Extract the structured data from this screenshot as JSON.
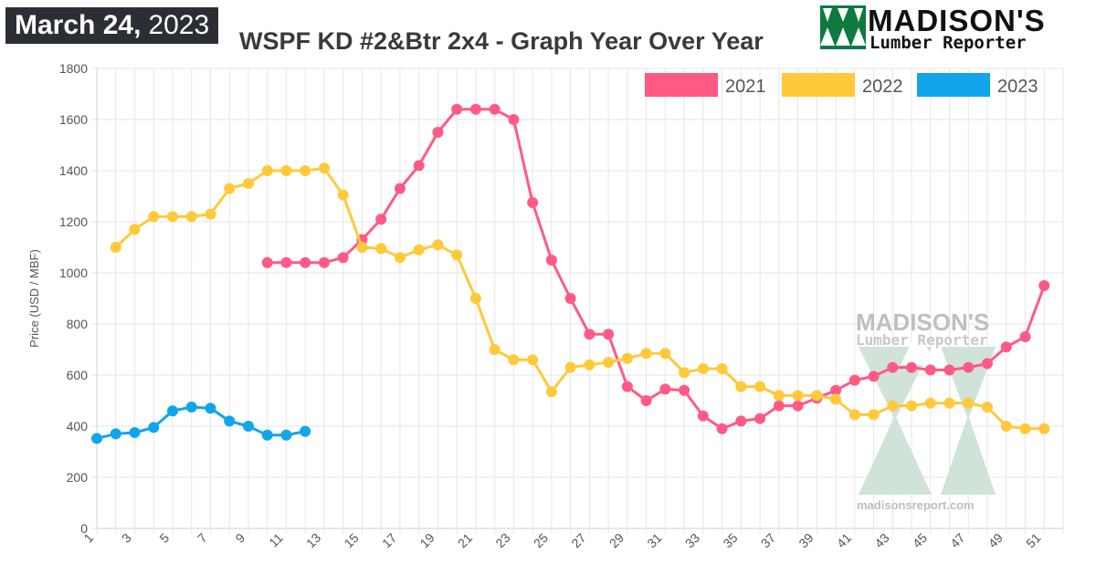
{
  "header": {
    "date_month_day": "March 24,",
    "date_year": "2023",
    "title": "WSPF KD #2&Btr 2x4 - Graph Year Over Year"
  },
  "logo": {
    "line1": "MADISON'S",
    "line2": "Lumber Reporter",
    "brand_color": "#0e7a3f"
  },
  "watermark": {
    "line1": "MADISON'S",
    "line2": "Lumber Reporter",
    "url": "madisonsreport.com",
    "color": "#cfe3d9"
  },
  "chart_data": {
    "type": "line",
    "title": "WSPF KD #2&Btr 2x4 - Graph Year Over Year",
    "xlabel": "",
    "ylabel": "Price (USD / MBF)",
    "xlim": [
      1,
      52
    ],
    "ylim": [
      0,
      1800
    ],
    "y_ticks": [
      0,
      200,
      400,
      600,
      800,
      1000,
      1200,
      1400,
      1600,
      1800
    ],
    "x_tick_labels": [
      "1",
      "3",
      "5",
      "7",
      "9",
      "11",
      "13",
      "15",
      "17",
      "19",
      "21",
      "23",
      "25",
      "27",
      "29",
      "31",
      "33",
      "35",
      "37",
      "39",
      "41",
      "43",
      "45",
      "47",
      "49",
      "51"
    ],
    "grid": true,
    "legend_position": "top-right",
    "series": [
      {
        "name": "2021",
        "color": "#ff5a85",
        "points": [
          [
            10,
            1040
          ],
          [
            11,
            1040
          ],
          [
            12,
            1040
          ],
          [
            13,
            1040
          ],
          [
            14,
            1060
          ],
          [
            15,
            1130
          ],
          [
            16,
            1210
          ],
          [
            17,
            1330
          ],
          [
            18,
            1420
          ],
          [
            19,
            1550
          ],
          [
            20,
            1640
          ],
          [
            21,
            1640
          ],
          [
            22,
            1640
          ],
          [
            23,
            1600
          ],
          [
            24,
            1275
          ],
          [
            25,
            1050
          ],
          [
            26,
            900
          ],
          [
            27,
            760
          ],
          [
            28,
            760
          ],
          [
            29,
            555
          ],
          [
            30,
            500
          ],
          [
            31,
            545
          ],
          [
            32,
            540
          ],
          [
            33,
            440
          ],
          [
            34,
            390
          ],
          [
            35,
            420
          ],
          [
            36,
            430
          ],
          [
            37,
            480
          ],
          [
            38,
            480
          ],
          [
            39,
            510
          ],
          [
            40,
            540
          ],
          [
            41,
            580
          ],
          [
            42,
            595
          ],
          [
            43,
            630
          ],
          [
            44,
            630
          ],
          [
            45,
            620
          ],
          [
            46,
            620
          ],
          [
            47,
            630
          ],
          [
            48,
            645
          ],
          [
            49,
            710
          ],
          [
            50,
            750
          ],
          [
            51,
            950
          ]
        ]
      },
      {
        "name": "2022",
        "color": "#ffc93a",
        "points": [
          [
            2,
            1100
          ],
          [
            3,
            1170
          ],
          [
            4,
            1220
          ],
          [
            5,
            1220
          ],
          [
            6,
            1220
          ],
          [
            7,
            1230
          ],
          [
            8,
            1330
          ],
          [
            9,
            1350
          ],
          [
            10,
            1400
          ],
          [
            11,
            1400
          ],
          [
            12,
            1400
          ],
          [
            13,
            1410
          ],
          [
            14,
            1305
          ],
          [
            15,
            1100
          ],
          [
            16,
            1095
          ],
          [
            17,
            1060
          ],
          [
            18,
            1090
          ],
          [
            19,
            1110
          ],
          [
            20,
            1070
          ],
          [
            21,
            900
          ],
          [
            22,
            700
          ],
          [
            23,
            660
          ],
          [
            24,
            660
          ],
          [
            25,
            535
          ],
          [
            26,
            630
          ],
          [
            27,
            640
          ],
          [
            28,
            650
          ],
          [
            29,
            665
          ],
          [
            30,
            685
          ],
          [
            31,
            685
          ],
          [
            32,
            610
          ],
          [
            33,
            625
          ],
          [
            34,
            625
          ],
          [
            35,
            555
          ],
          [
            36,
            555
          ],
          [
            37,
            520
          ],
          [
            38,
            520
          ],
          [
            39,
            520
          ],
          [
            40,
            505
          ],
          [
            41,
            445
          ],
          [
            42,
            445
          ],
          [
            43,
            480
          ],
          [
            44,
            480
          ],
          [
            45,
            490
          ],
          [
            46,
            490
          ],
          [
            47,
            490
          ],
          [
            48,
            475
          ],
          [
            49,
            400
          ],
          [
            50,
            390
          ],
          [
            51,
            390
          ]
        ]
      },
      {
        "name": "2023",
        "color": "#12a5ea",
        "points": [
          [
            1,
            352
          ],
          [
            2,
            370
          ],
          [
            3,
            375
          ],
          [
            4,
            395
          ],
          [
            5,
            460
          ],
          [
            6,
            475
          ],
          [
            7,
            470
          ],
          [
            8,
            420
          ],
          [
            9,
            400
          ],
          [
            10,
            365
          ],
          [
            11,
            365
          ],
          [
            12,
            380
          ]
        ]
      }
    ]
  }
}
